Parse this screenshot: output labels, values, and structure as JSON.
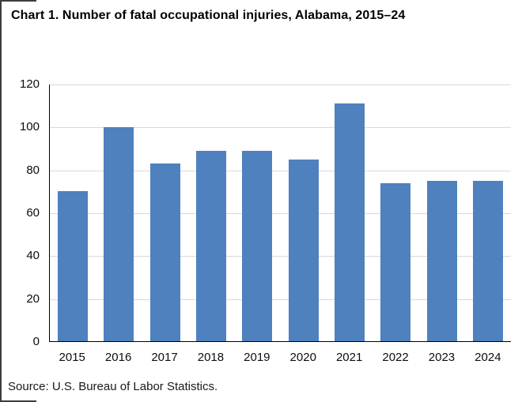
{
  "title": "Chart 1. Number of fatal occupational injuries, Alabama, 2015–24",
  "source": "Source: U.S. Bureau of Labor Statistics.",
  "colors": {
    "bar": "#4e81bd",
    "gridline": "#d9d9d9",
    "axis": "#000000",
    "tick_text": "#0d0d0d",
    "edge_border": "#3d3d3d"
  },
  "chart_data": {
    "type": "bar",
    "categories": [
      "2015",
      "2016",
      "2017",
      "2018",
      "2019",
      "2020",
      "2021",
      "2022",
      "2023",
      "2024"
    ],
    "values": [
      70,
      100,
      83,
      89,
      89,
      85,
      111,
      74,
      75,
      75
    ],
    "title": "Chart 1. Number of fatal occupational injuries, Alabama, 2015–24",
    "xlabel": "",
    "ylabel": "",
    "ylim": [
      0,
      120
    ],
    "yticks": [
      0,
      20,
      40,
      60,
      80,
      100,
      120
    ],
    "grid": true,
    "legend": false
  }
}
